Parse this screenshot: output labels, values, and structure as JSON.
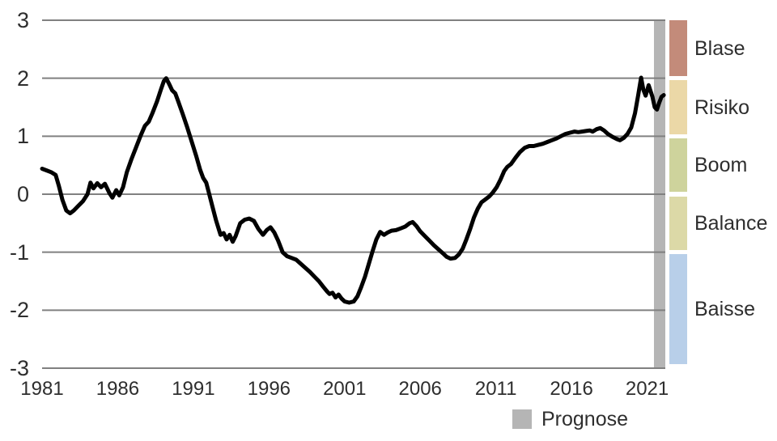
{
  "chart_data": {
    "type": "line",
    "title": "",
    "xlabel": "",
    "ylabel": "",
    "ylim": [
      -3,
      3
    ],
    "x_range": [
      1981,
      2022.2
    ],
    "y_ticks": [
      3,
      2,
      1,
      0,
      -1,
      -2,
      -3
    ],
    "x_ticks": [
      1981,
      1986,
      1991,
      1996,
      2001,
      2006,
      2011,
      2016,
      2021
    ],
    "grid": true,
    "gridline_color": "#808080",
    "line_color": "#000000",
    "series": [
      {
        "name": "",
        "points": [
          [
            1981.0,
            0.44
          ],
          [
            1981.3,
            0.41
          ],
          [
            1981.6,
            0.38
          ],
          [
            1981.9,
            0.33
          ],
          [
            1982.1,
            0.15
          ],
          [
            1982.35,
            -0.1
          ],
          [
            1982.6,
            -0.28
          ],
          [
            1982.85,
            -0.33
          ],
          [
            1983.1,
            -0.28
          ],
          [
            1983.4,
            -0.2
          ],
          [
            1983.7,
            -0.12
          ],
          [
            1984.0,
            0.0
          ],
          [
            1984.2,
            0.2
          ],
          [
            1984.4,
            0.1
          ],
          [
            1984.65,
            0.19
          ],
          [
            1984.9,
            0.12
          ],
          [
            1985.15,
            0.18
          ],
          [
            1985.45,
            0.02
          ],
          [
            1985.65,
            -0.06
          ],
          [
            1985.9,
            0.07
          ],
          [
            1986.1,
            -0.02
          ],
          [
            1986.35,
            0.12
          ],
          [
            1986.6,
            0.38
          ],
          [
            1986.9,
            0.6
          ],
          [
            1987.2,
            0.8
          ],
          [
            1987.5,
            1.0
          ],
          [
            1987.8,
            1.18
          ],
          [
            1988.05,
            1.25
          ],
          [
            1988.3,
            1.4
          ],
          [
            1988.6,
            1.6
          ],
          [
            1988.85,
            1.8
          ],
          [
            1989.05,
            1.95
          ],
          [
            1989.2,
            2.0
          ],
          [
            1989.4,
            1.9
          ],
          [
            1989.6,
            1.79
          ],
          [
            1989.8,
            1.74
          ],
          [
            1990.0,
            1.6
          ],
          [
            1990.3,
            1.38
          ],
          [
            1990.6,
            1.15
          ],
          [
            1990.9,
            0.9
          ],
          [
            1991.2,
            0.65
          ],
          [
            1991.45,
            0.42
          ],
          [
            1991.65,
            0.28
          ],
          [
            1991.85,
            0.2
          ],
          [
            1992.0,
            0.05
          ],
          [
            1992.2,
            -0.15
          ],
          [
            1992.5,
            -0.45
          ],
          [
            1992.8,
            -0.7
          ],
          [
            1993.0,
            -0.67
          ],
          [
            1993.2,
            -0.78
          ],
          [
            1993.4,
            -0.7
          ],
          [
            1993.6,
            -0.82
          ],
          [
            1993.8,
            -0.72
          ],
          [
            1994.1,
            -0.5
          ],
          [
            1994.4,
            -0.44
          ],
          [
            1994.7,
            -0.42
          ],
          [
            1995.0,
            -0.46
          ],
          [
            1995.3,
            -0.6
          ],
          [
            1995.6,
            -0.7
          ],
          [
            1995.85,
            -0.62
          ],
          [
            1996.1,
            -0.57
          ],
          [
            1996.35,
            -0.66
          ],
          [
            1996.6,
            -0.8
          ],
          [
            1996.9,
            -1.0
          ],
          [
            1997.2,
            -1.07
          ],
          [
            1997.5,
            -1.1
          ],
          [
            1997.8,
            -1.13
          ],
          [
            1998.1,
            -1.2
          ],
          [
            1998.4,
            -1.27
          ],
          [
            1998.7,
            -1.34
          ],
          [
            1999.0,
            -1.42
          ],
          [
            1999.3,
            -1.5
          ],
          [
            1999.6,
            -1.6
          ],
          [
            1999.85,
            -1.68
          ],
          [
            2000.0,
            -1.72
          ],
          [
            2000.2,
            -1.7
          ],
          [
            2000.4,
            -1.78
          ],
          [
            2000.6,
            -1.73
          ],
          [
            2000.8,
            -1.8
          ],
          [
            2001.0,
            -1.85
          ],
          [
            2001.3,
            -1.87
          ],
          [
            2001.6,
            -1.85
          ],
          [
            2001.85,
            -1.76
          ],
          [
            2002.1,
            -1.6
          ],
          [
            2002.35,
            -1.42
          ],
          [
            2002.6,
            -1.2
          ],
          [
            2002.85,
            -0.98
          ],
          [
            2003.1,
            -0.78
          ],
          [
            2003.35,
            -0.65
          ],
          [
            2003.6,
            -0.7
          ],
          [
            2003.85,
            -0.66
          ],
          [
            2004.1,
            -0.63
          ],
          [
            2004.4,
            -0.62
          ],
          [
            2004.7,
            -0.59
          ],
          [
            2005.0,
            -0.56
          ],
          [
            2005.3,
            -0.5
          ],
          [
            2005.5,
            -0.48
          ],
          [
            2005.75,
            -0.55
          ],
          [
            2006.0,
            -0.64
          ],
          [
            2006.3,
            -0.72
          ],
          [
            2006.6,
            -0.8
          ],
          [
            2006.9,
            -0.88
          ],
          [
            2007.2,
            -0.95
          ],
          [
            2007.5,
            -1.02
          ],
          [
            2007.75,
            -1.08
          ],
          [
            2008.0,
            -1.11
          ],
          [
            2008.3,
            -1.1
          ],
          [
            2008.55,
            -1.04
          ],
          [
            2008.8,
            -0.94
          ],
          [
            2009.05,
            -0.78
          ],
          [
            2009.3,
            -0.6
          ],
          [
            2009.55,
            -0.4
          ],
          [
            2009.8,
            -0.25
          ],
          [
            2010.05,
            -0.14
          ],
          [
            2010.3,
            -0.09
          ],
          [
            2010.55,
            -0.04
          ],
          [
            2010.8,
            0.03
          ],
          [
            2011.05,
            0.12
          ],
          [
            2011.3,
            0.25
          ],
          [
            2011.55,
            0.4
          ],
          [
            2011.75,
            0.47
          ],
          [
            2012.0,
            0.52
          ],
          [
            2012.3,
            0.63
          ],
          [
            2012.6,
            0.73
          ],
          [
            2012.9,
            0.8
          ],
          [
            2013.2,
            0.83
          ],
          [
            2013.5,
            0.83
          ],
          [
            2013.8,
            0.85
          ],
          [
            2014.1,
            0.87
          ],
          [
            2014.4,
            0.9
          ],
          [
            2014.7,
            0.93
          ],
          [
            2015.0,
            0.96
          ],
          [
            2015.3,
            1.0
          ],
          [
            2015.6,
            1.04
          ],
          [
            2015.9,
            1.06
          ],
          [
            2016.2,
            1.08
          ],
          [
            2016.45,
            1.07
          ],
          [
            2016.7,
            1.08
          ],
          [
            2016.95,
            1.09
          ],
          [
            2017.2,
            1.1
          ],
          [
            2017.4,
            1.08
          ],
          [
            2017.65,
            1.12
          ],
          [
            2017.9,
            1.14
          ],
          [
            2018.15,
            1.1
          ],
          [
            2018.4,
            1.04
          ],
          [
            2018.7,
            0.99
          ],
          [
            2019.0,
            0.95
          ],
          [
            2019.2,
            0.93
          ],
          [
            2019.45,
            0.97
          ],
          [
            2019.7,
            1.04
          ],
          [
            2019.95,
            1.15
          ],
          [
            2020.2,
            1.4
          ],
          [
            2020.4,
            1.7
          ],
          [
            2020.6,
            2.01
          ],
          [
            2020.75,
            1.8
          ],
          [
            2020.9,
            1.7
          ],
          [
            2021.1,
            1.88
          ],
          [
            2021.35,
            1.68
          ],
          [
            2021.5,
            1.5
          ],
          [
            2021.65,
            1.46
          ],
          [
            2021.8,
            1.58
          ],
          [
            2021.95,
            1.68
          ],
          [
            2022.1,
            1.71
          ]
        ]
      }
    ],
    "prognose": {
      "label": "Prognose",
      "start": 2021.45,
      "end": 2022.2,
      "color": "#b5b5b5",
      "legend_position": "bottom-center"
    },
    "bands": [
      {
        "label": "Blase",
        "color": "#c38b7a",
        "from": 2,
        "to": 3
      },
      {
        "label": "Risiko",
        "color": "#ebd8a7",
        "from": 1,
        "to": 2
      },
      {
        "label": "Boom",
        "color": "#ced39c",
        "from": 0,
        "to": 1
      },
      {
        "label": "Balance",
        "color": "#dcd9a7",
        "from": -1,
        "to": 0
      },
      {
        "label": "Baisse",
        "color": "#b8cfe9",
        "from": -3,
        "to": -1
      }
    ]
  }
}
